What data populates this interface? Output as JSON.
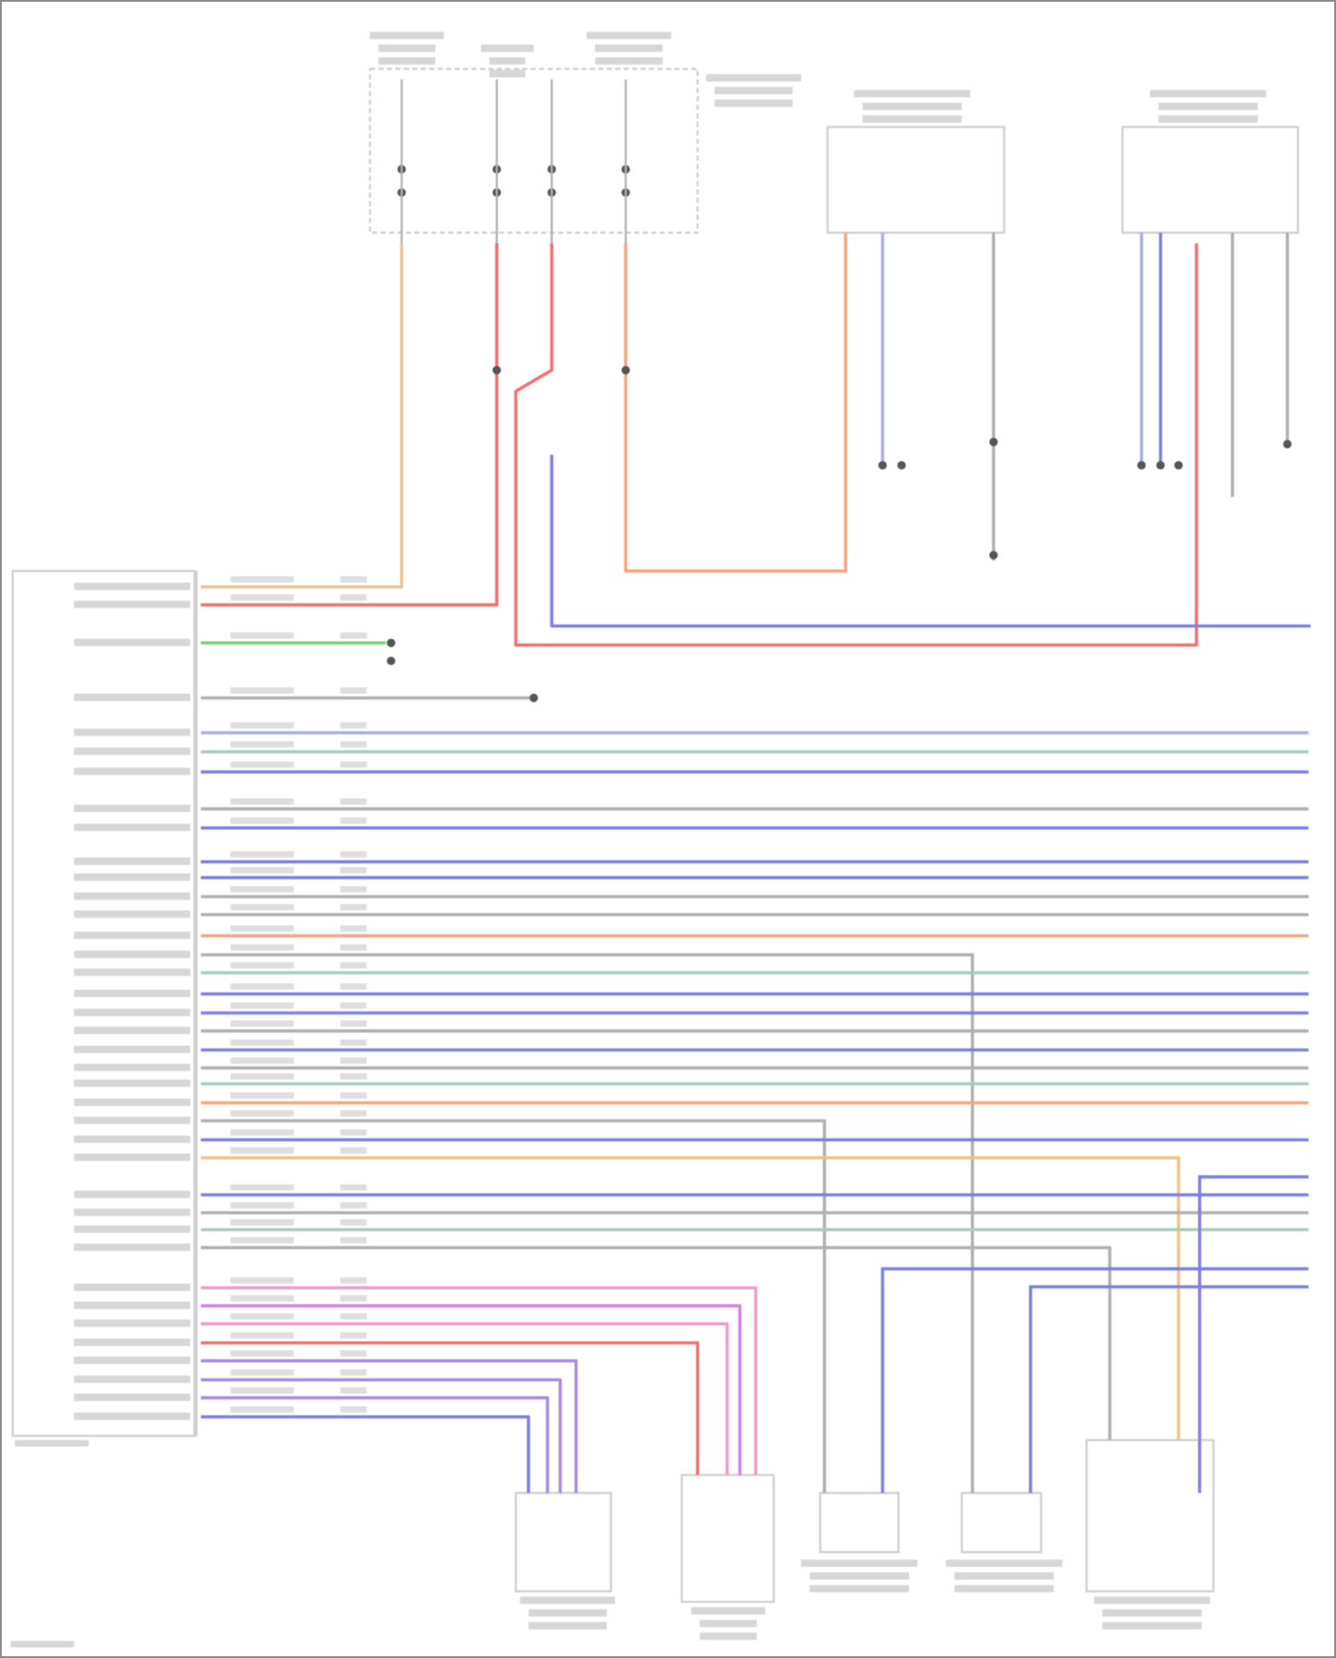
{
  "colors": {
    "outline": "#cfcfcf",
    "text_placeholder": "#bdbdbd",
    "node": "#555555",
    "red": "#f07070",
    "orange": "#f6a57c",
    "tan": "#e9c48e",
    "green": "#7ccc7c",
    "blue": "#7c80e2",
    "bluegray": "#a9b0d8",
    "gray": "#b0b0b0",
    "greengray": "#a9cdb5",
    "pink": "#f09ac8",
    "magenta": "#d97ee8",
    "violet": "#a68ae8"
  },
  "wires": [
    {
      "color": "tan"
    },
    {
      "color": "red"
    },
    {
      "color": "green"
    },
    {
      "color": "gray"
    },
    {
      "color": "bluegray"
    },
    {
      "color": "greengray"
    },
    {
      "color": "blue"
    },
    {
      "color": "gray"
    },
    {
      "color": "blue"
    },
    {
      "color": "blue"
    },
    {
      "color": "blue"
    },
    {
      "color": "gray"
    },
    {
      "color": "gray"
    },
    {
      "color": "orange"
    },
    {
      "color": "gray"
    },
    {
      "color": "greengray"
    },
    {
      "color": "blue"
    },
    {
      "color": "blue"
    },
    {
      "color": "gray"
    },
    {
      "color": "blue"
    },
    {
      "color": "gray"
    },
    {
      "color": "greengray"
    },
    {
      "color": "orange"
    },
    {
      "color": "gray"
    },
    {
      "color": "blue"
    },
    {
      "color": "tan"
    },
    {
      "color": "blue"
    },
    {
      "color": "gray"
    },
    {
      "color": "greengray"
    },
    {
      "color": "gray"
    },
    {
      "color": "pink"
    },
    {
      "color": "magenta"
    },
    {
      "color": "pink"
    },
    {
      "color": "red"
    },
    {
      "color": "violet"
    },
    {
      "color": "violet"
    },
    {
      "color": "violet"
    },
    {
      "color": "blue"
    },
    {
      "color": "red"
    },
    {
      "color": "orange"
    },
    {
      "color": "blue"
    },
    {
      "color": "red"
    },
    {
      "color": "orange"
    },
    {
      "color": "bluegray"
    },
    {
      "color": "gray"
    },
    {
      "color": "bluegray"
    },
    {
      "color": "blue"
    },
    {
      "color": "gray"
    },
    {
      "color": "gray"
    }
  ]
}
